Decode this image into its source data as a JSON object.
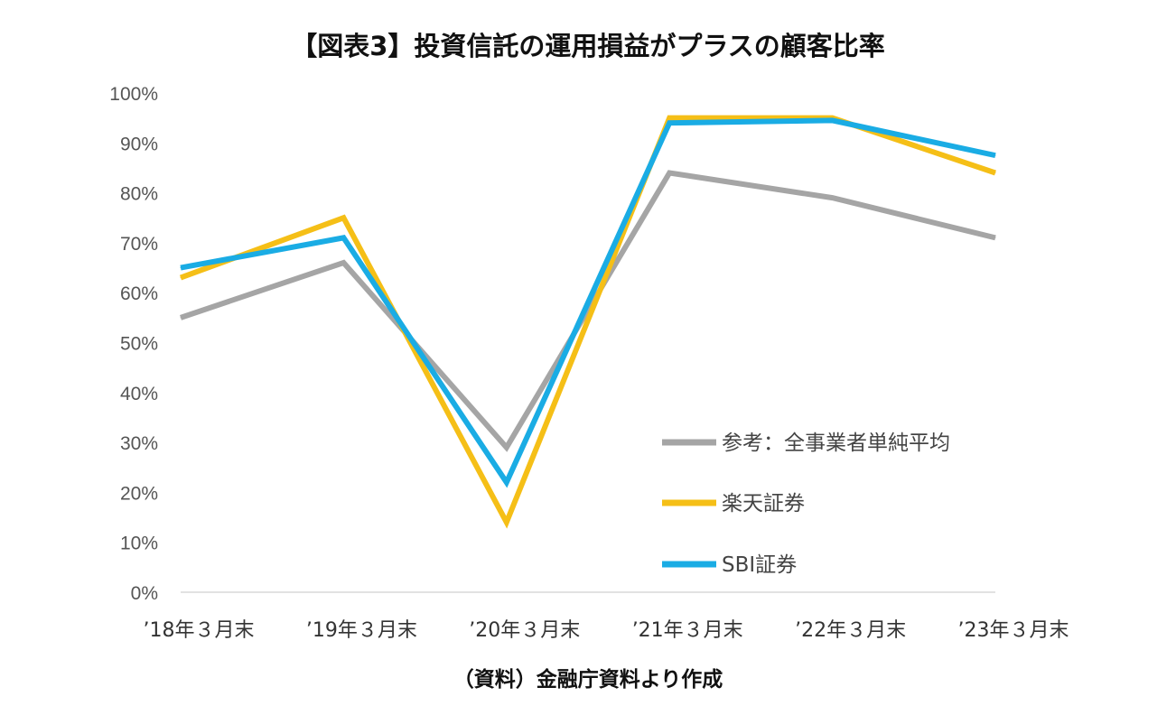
{
  "chart_data": {
    "type": "line",
    "title": "【図表3】投資信託の運用損益がプラスの顧客比率",
    "source": "（資料）金融庁資料より作成",
    "categories": [
      "’18年３月末",
      "’19年３月末",
      "’20年３月末",
      "’21年３月末",
      "’22年３月末",
      "’23年３月末"
    ],
    "ylim": [
      0,
      100
    ],
    "yticks": [
      "0%",
      "10%",
      "20%",
      "30%",
      "40%",
      "50%",
      "60%",
      "70%",
      "80%",
      "90%",
      "100%"
    ],
    "grid": false,
    "legend_position": "bottom-right (inside plot)",
    "series": [
      {
        "name": "参考：全事業者単純平均",
        "color": "#a5a5a5",
        "values": [
          55,
          66,
          29,
          84,
          79,
          71
        ]
      },
      {
        "name": "楽天証券",
        "color": "#f5bf17",
        "values": [
          63,
          75,
          14,
          95,
          95,
          84
        ]
      },
      {
        "name": "SBI証券",
        "color": "#1aace4",
        "values": [
          65,
          71,
          22,
          94,
          94.5,
          87.5
        ]
      }
    ]
  }
}
